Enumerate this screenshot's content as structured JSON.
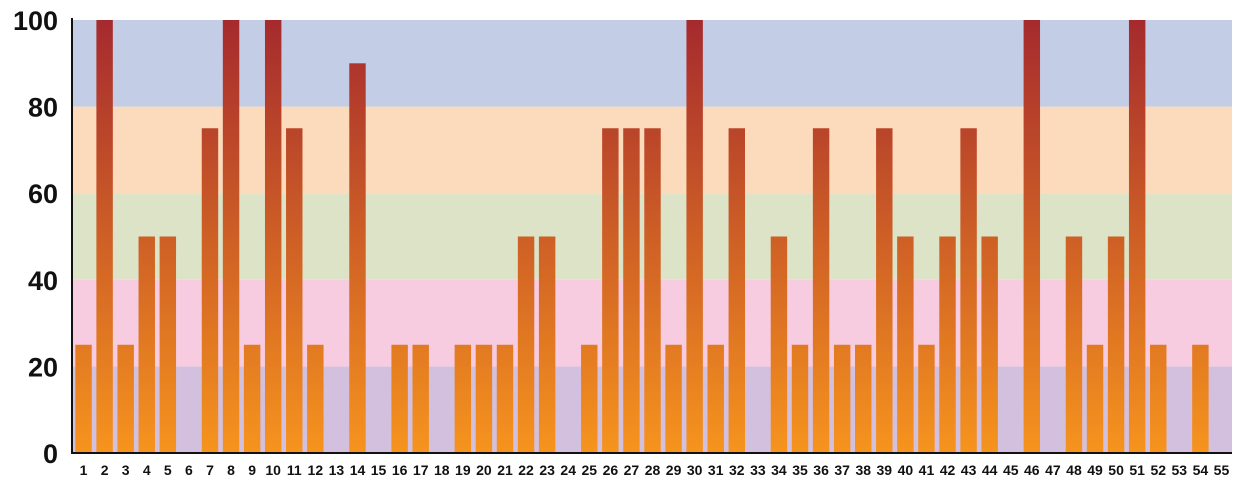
{
  "chart_data": {
    "type": "bar",
    "title": "",
    "xlabel": "",
    "ylabel": "",
    "ylim": [
      0,
      100
    ],
    "yticks": [
      "0",
      "20",
      "40",
      "60",
      "80",
      "100"
    ],
    "grid": false,
    "background_bands": [
      {
        "from": 0,
        "to": 20,
        "color": "#d3c0df"
      },
      {
        "from": 20,
        "to": 40,
        "color": "#f7cce1"
      },
      {
        "from": 40,
        "to": 60,
        "color": "#dce3c7"
      },
      {
        "from": 60,
        "to": 80,
        "color": "#fcdbbd"
      },
      {
        "from": 80,
        "to": 100,
        "color": "#c4cde6"
      }
    ],
    "bar_gradient": {
      "bottom": "#f6941e",
      "top": "#a52a2e"
    },
    "categories": [
      "1",
      "2",
      "3",
      "4",
      "5",
      "6",
      "7",
      "8",
      "9",
      "10",
      "11",
      "12",
      "13",
      "14",
      "15",
      "16",
      "17",
      "18",
      "19",
      "20",
      "21",
      "22",
      "23",
      "24",
      "25",
      "26",
      "27",
      "28",
      "29",
      "30",
      "31",
      "32",
      "33",
      "34",
      "35",
      "36",
      "37",
      "38",
      "39",
      "40",
      "41",
      "42",
      "43",
      "44",
      "45",
      "46",
      "47",
      "48",
      "49",
      "50",
      "51",
      "52",
      "53",
      "54",
      "55"
    ],
    "values": [
      25,
      100,
      25,
      50,
      50,
      0,
      75,
      100,
      25,
      100,
      75,
      25,
      0,
      90,
      0,
      25,
      25,
      0,
      25,
      25,
      25,
      50,
      50,
      0,
      25,
      75,
      75,
      75,
      25,
      100,
      25,
      75,
      0,
      50,
      25,
      75,
      25,
      25,
      75,
      50,
      25,
      50,
      75,
      50,
      0,
      100,
      0,
      50,
      25,
      50,
      100,
      25,
      0,
      25,
      0
    ]
  }
}
